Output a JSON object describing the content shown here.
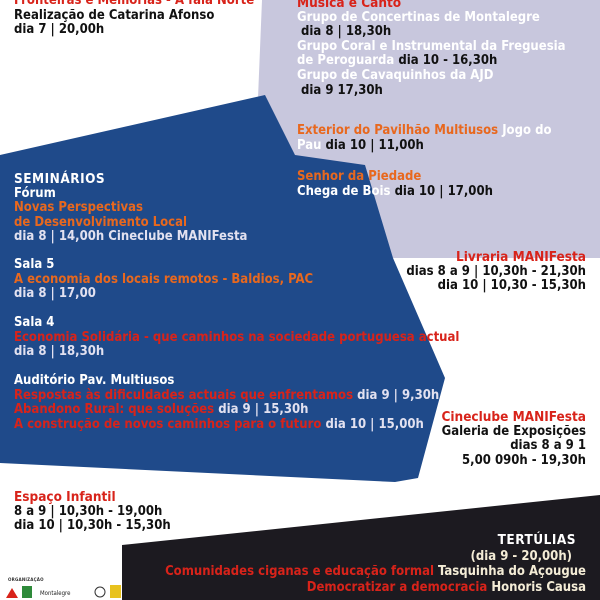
{
  "top_left": {
    "title": "Fronteiras e Memórias - A fala Norte",
    "credit": "Realização de Catarina Afonso",
    "date": "dia 7 | 20,00h"
  },
  "musica": {
    "title": "Música e Canto",
    "items": [
      {
        "name": "Grupo de Concertinas de Montalegre",
        "time": "dia 8 | 18,30h"
      },
      {
        "name": "Grupo Coral e Instrumental da Freguesia",
        "name2": "de Peroguarda",
        "time": "dia 10 - 16,30h"
      },
      {
        "name": "Grupo de Cavaquinhos da AJD",
        "time": "dia 9 17,30h"
      }
    ]
  },
  "exterior": {
    "venue": "Exterior do Pavilhão Multiusos",
    "event": "Jogo do",
    "event2": "Pau",
    "time": "dia 10 | 11,00h"
  },
  "piedade": {
    "venue": "Senhor da Piedade",
    "event": "Chega de Bois",
    "time": "dia 10 | 17,00h"
  },
  "seminarios": {
    "title": "SEMINÁRIOS",
    "forum_label": "Fórum",
    "forum_title1": "Novas Perspectivas",
    "forum_title2": "de Desenvolvimento Local",
    "forum_time": "dia 8 | 14,00h Cineclube MANIFesta",
    "sala5_label": "Sala 5",
    "sala5_title": "A economia dos locais remotos - Baldios, PAC",
    "sala5_time": "dia 8 | 17,00",
    "sala4_label": "Sala 4",
    "sala4_title": "Economia Solidária - que caminhos na sociedade portuguesa actual",
    "sala4_time": "dia 8 | 18,30h",
    "auditorio_label": "Auditório Pav. Multiusos",
    "auditorio_items": [
      {
        "title": "Respostas às dificuldades actuais que enfrentamos",
        "time": "dia 9 | 9,30h"
      },
      {
        "title": "Abandono Rural: que soluções",
        "time": "dia 9 | 15,30h"
      },
      {
        "title": "A construção de novos caminhos para o futuro",
        "time": "dia 10 | 15,00h"
      }
    ]
  },
  "livraria": {
    "title": "Livraria MANIFesta",
    "line1": "dias 8 a 9 | 10,30h - 21,30h",
    "line2": "dia 10 | 10,30 - 15,30h"
  },
  "cineclube": {
    "title": "Cineclube MANIFesta",
    "line1": "Galeria de Exposições",
    "line2": "dias 8 a 9 1",
    "line3": "5,00 090h - 19,30h"
  },
  "infantil": {
    "title": "Espaço Infantil",
    "line1": "8 a 9 | 10,30h - 19,00h",
    "line2": "dia 10 | 10,30h - 15,30h"
  },
  "tertulias": {
    "title": "TERTÚLIAS",
    "subtitle": "(dia 9 - 20,00h)",
    "items": [
      {
        "topic": "Comunidades ciganas e educação formal",
        "place": "Tasquinha do Açougue"
      },
      {
        "topic": "Democratizar a democracia",
        "place": "Honoris Causa"
      }
    ]
  },
  "footer": {
    "org_label": "ORGANIZAÇÃO",
    "logo_text": "Montalegre"
  },
  "colors": {
    "navy": "#1f4a8a",
    "lavender": "#c8c7dd",
    "dark": "#1c1a20",
    "orange": "#e8681e",
    "red": "#d8231a"
  }
}
